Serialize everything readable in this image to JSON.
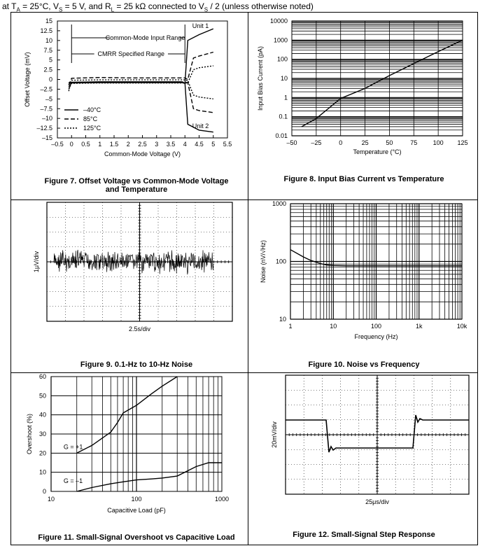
{
  "header": {
    "prefix": "at T",
    "sub_a": "A",
    "mid1": " = 25°C, V",
    "sub_s": "S",
    "mid2": " = 5 V, and R",
    "sub_l": "L",
    "mid3": " = 25 kΩ connected to V",
    "sub_s2": "S",
    "suffix": " / 2 (unless otherwise noted)"
  },
  "figures": {
    "fig7": {
      "caption_line1": "Figure 7. Offset Voltage vs Common-Mode Voltage",
      "caption_line2": "and Temperature"
    },
    "fig8": {
      "caption": "Figure 8. Input Bias Current vs Temperature"
    },
    "fig9": {
      "caption": "Figure 9. 0.1-Hz to 10-Hz Noise"
    },
    "fig10": {
      "caption": "Figure 10. Noise vs Frequency"
    },
    "fig11": {
      "caption": "Figure 11. Small-Signal Overshoot vs Capacitive Load"
    },
    "fig12": {
      "caption": "Figure 12. Small-Signal Step Response"
    }
  },
  "chart_data": [
    {
      "id": "fig7",
      "type": "line",
      "xlabel": "Common-Mode Voltage (V)",
      "ylabel": "Offset Voltage (mV)",
      "xlim": [
        -0.5,
        5.5
      ],
      "ylim": [
        -15,
        15
      ],
      "xticks": [
        "–0.5",
        "0",
        "0.5",
        "1",
        "1.5",
        "2",
        "2.5",
        "3",
        "3.5",
        "4",
        "4.5",
        "5",
        "5.5"
      ],
      "yticks": [
        "15",
        "12.5",
        "10",
        "7.5",
        "5",
        "2.5",
        "0",
        "–2.5",
        "–5",
        "–7.5",
        "–10",
        "–12.5",
        "–15"
      ],
      "annotations": {
        "cmir": "Common-Mode Input Range",
        "cmrr": "CMRR Specified Range",
        "unit1": "Unit 1",
        "unit2": "Unit 2"
      },
      "legend": [
        "–40°C",
        "85°C",
        "125°C"
      ],
      "legend_position": "bottom-left",
      "series": [
        {
          "name": "–40°C",
          "style": "solid",
          "x": [
            -0.1,
            0,
            1,
            2,
            3,
            3.9,
            4.0,
            4.1,
            4.5,
            5.0
          ],
          "y": [
            -1.0,
            -0.9,
            -0.8,
            -0.8,
            -0.8,
            -0.8,
            -1.0,
            10.0,
            11.5,
            13.0
          ]
        },
        {
          "name": "–40°C",
          "style": "solid",
          "x": [
            -0.1,
            0,
            1,
            2,
            3,
            3.9,
            4.0,
            4.1,
            4.5,
            5.0
          ],
          "y": [
            -0.8,
            -0.7,
            -0.6,
            -0.6,
            -0.6,
            -0.6,
            -1.0,
            -11.5,
            -13.0,
            -13.5
          ]
        },
        {
          "name": "85°C",
          "style": "dashed",
          "x": [
            -0.1,
            0,
            1,
            2,
            3,
            4.0,
            4.1,
            4.3,
            4.5,
            5.0
          ],
          "y": [
            -1.5,
            0.3,
            0.5,
            0.4,
            0.4,
            0.4,
            0.0,
            5.5,
            6.0,
            7.0
          ]
        },
        {
          "name": "85°C",
          "style": "dashed",
          "x": [
            -0.1,
            0,
            1,
            2,
            3,
            4.0,
            4.1,
            4.3,
            4.5,
            5.0
          ],
          "y": [
            -2.0,
            -0.8,
            -0.7,
            -0.7,
            -0.7,
            -0.7,
            -0.8,
            -7.5,
            -8.0,
            -8.5
          ]
        },
        {
          "name": "125°C",
          "style": "dotted",
          "x": [
            -0.1,
            0,
            1,
            2,
            3,
            4.0,
            4.1,
            4.3,
            4.5,
            5.0
          ],
          "y": [
            -2.5,
            -1.0,
            -0.9,
            -0.9,
            -0.9,
            -0.9,
            -0.9,
            2.5,
            3.0,
            3.5
          ]
        },
        {
          "name": "125°C",
          "style": "dotted",
          "x": [
            -0.1,
            0,
            1,
            2,
            3,
            4.0,
            4.1,
            4.3,
            4.5,
            5.0
          ],
          "y": [
            -3.0,
            -0.2,
            -0.1,
            -0.1,
            -0.1,
            -0.1,
            -0.3,
            -4.0,
            -4.5,
            -5.0
          ]
        }
      ]
    },
    {
      "id": "fig8",
      "type": "line",
      "xlabel": "Temperature (°C)",
      "ylabel": "Input Bias Current (pA)",
      "scale_y": "log",
      "xlim": [
        -50,
        125
      ],
      "ylim": [
        0.01,
        10000
      ],
      "xticks": [
        "–50",
        "–25",
        "0",
        "25",
        "50",
        "75",
        "100",
        "125"
      ],
      "yticks": [
        "10000",
        "1000",
        "100",
        "10",
        "1",
        "0.1",
        "0.01"
      ],
      "series": [
        {
          "x": [
            -40,
            -25,
            0,
            25,
            50,
            75,
            100,
            125
          ],
          "y": [
            0.03,
            0.08,
            0.9,
            3,
            14,
            60,
            250,
            1000
          ]
        }
      ]
    },
    {
      "id": "fig9",
      "type": "line",
      "xlabel": "2.5s/div",
      "ylabel": "1μV/div",
      "divisions": {
        "x": 10,
        "y": 8
      }
    },
    {
      "id": "fig10",
      "type": "line",
      "xlabel": "Frequency (Hz)",
      "ylabel": "Noise (nV/√Hz)",
      "scale_x": "log",
      "scale_y": "log",
      "xlim": [
        1,
        10000
      ],
      "ylim": [
        10,
        1000
      ],
      "xticks": [
        "1",
        "10",
        "100",
        "1k",
        "10k"
      ],
      "yticks": [
        "1000",
        "100",
        "10"
      ],
      "series": [
        {
          "x": [
            1,
            2,
            3,
            5,
            7,
            10,
            20,
            100,
            1000,
            10000
          ],
          "y": [
            160,
            120,
            104,
            92,
            87,
            85,
            84,
            84,
            84,
            84
          ]
        }
      ]
    },
    {
      "id": "fig11",
      "type": "line",
      "xlabel": "Capacitive Load (pF)",
      "ylabel": "Overshoot (%)",
      "scale_x": "log",
      "xlim": [
        10,
        1000
      ],
      "ylim": [
        0,
        60
      ],
      "xticks": [
        "10",
        "100",
        "1000"
      ],
      "yticks": [
        "60",
        "50",
        "40",
        "30",
        "20",
        "10",
        "0"
      ],
      "series": [
        {
          "name": "G = +1",
          "x": [
            20,
            30,
            50,
            60,
            70,
            100,
            150,
            200,
            300
          ],
          "y": [
            20,
            24,
            31,
            36,
            41,
            45,
            51,
            55,
            60
          ]
        },
        {
          "name": "G = –1",
          "x": [
            20,
            30,
            50,
            70,
            100,
            150,
            200,
            300,
            500,
            700,
            1000
          ],
          "y": [
            0,
            2,
            4,
            5,
            6,
            6.5,
            7,
            8,
            13,
            15,
            15
          ]
        }
      ]
    },
    {
      "id": "fig12",
      "type": "line",
      "xlabel": "25μs/div",
      "ylabel": "20mV/div",
      "divisions": {
        "x": 10,
        "y": 8
      }
    }
  ]
}
